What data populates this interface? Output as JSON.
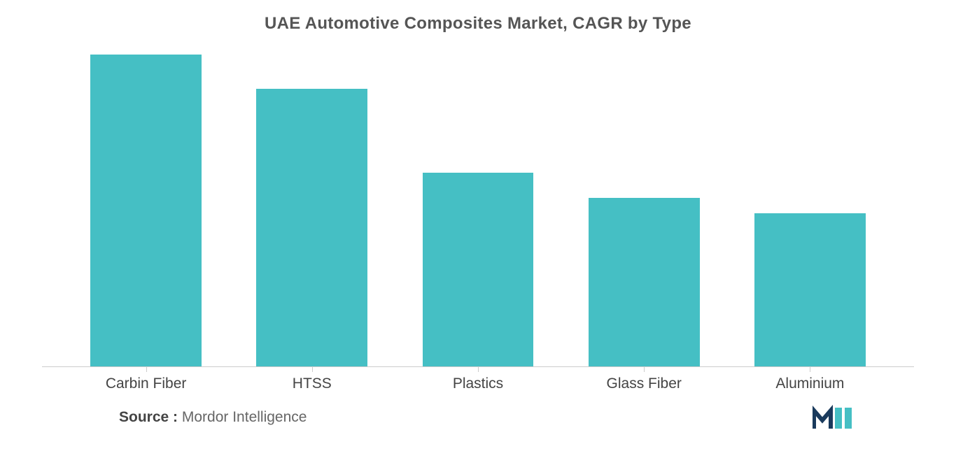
{
  "chart": {
    "type": "bar",
    "title": "UAE Automotive Composites Market, CAGR by Type",
    "title_fontsize": 24,
    "title_color": "#555555",
    "categories": [
      "Carbin Fiber",
      "HTSS",
      "Plastics",
      "Glass Fiber",
      "Aluminium"
    ],
    "values": [
      100,
      89,
      62,
      54,
      49
    ],
    "ylim": [
      0,
      100
    ],
    "bar_color": "#45bfc4",
    "bar_width_ratio": 0.67,
    "background_color": "#ffffff",
    "axis_color": "#cccccc",
    "label_fontsize": 21,
    "label_color": "#444444",
    "tick_height": 8
  },
  "footer": {
    "source_label": "Source :",
    "source_text": "Mordor Intelligence",
    "source_fontsize": 21,
    "logo_colors": {
      "dark": "#1a3a5c",
      "teal": "#45bfc4"
    }
  }
}
